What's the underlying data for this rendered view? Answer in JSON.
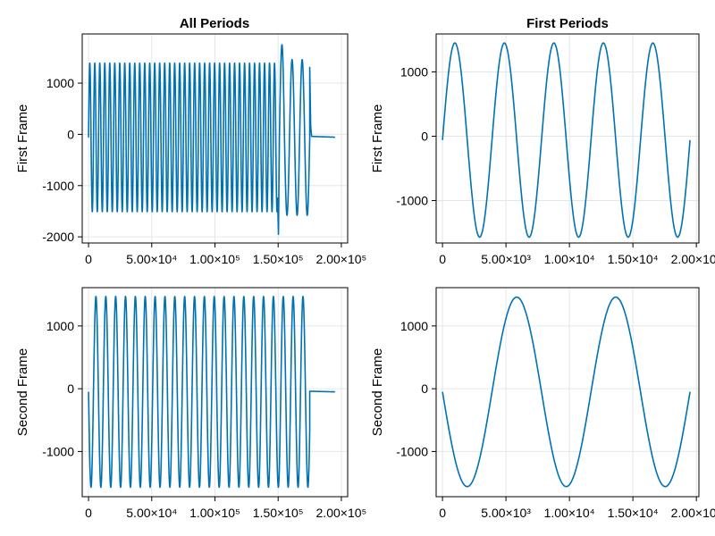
{
  "figure": {
    "background": "#ffffff",
    "line_color": "#0072b2"
  },
  "chart_data": [
    {
      "type": "line",
      "title": "All Periods",
      "xlabel": "",
      "ylabel": "First Frame",
      "xlim": [
        -5000,
        205000
      ],
      "ylim": [
        -2120,
        1960
      ],
      "x_ticks": [
        0,
        50000,
        100000,
        150000,
        200000
      ],
      "x_tick_labels": [
        "0",
        "5.00×10⁴",
        "1.00×10⁵",
        "1.50×10⁵",
        "2.00×10⁵"
      ],
      "y_ticks": [
        -2000,
        -1000,
        0,
        1000
      ],
      "y_tick_labels": [
        "-2000",
        "-1000",
        "0",
        "1000"
      ],
      "grid": true,
      "series": [
        {
          "name": "First Frame",
          "signal": {
            "segments": [
              {
                "x_start": 0,
                "x_end": 149500,
                "period": 3950,
                "amplitude": 1450,
                "offset": -60,
                "phase_deg": 0
              },
              {
                "x_start": 149500,
                "x_end": 151000,
                "spike_to": -1950
              },
              {
                "x_start": 151000,
                "x_end": 175000,
                "period": 8000,
                "amplitude": 1520,
                "offset": -60,
                "phase_deg": 0,
                "first_peak": 1750
              },
              {
                "x_start": 175000,
                "x_end": 176500,
                "spike_to": 160
              },
              {
                "x_start": 176500,
                "x_end": 195000,
                "flat_from": -40,
                "flat_to": -55
              }
            ]
          }
        }
      ]
    },
    {
      "type": "line",
      "title": "First Periods",
      "xlabel": "",
      "ylabel": "First Frame",
      "xlim": [
        -500,
        20200
      ],
      "ylim": [
        -1660,
        1590
      ],
      "x_ticks": [
        0,
        5000,
        10000,
        15000,
        20000
      ],
      "x_tick_labels": [
        "0",
        "5.00×10³",
        "1.00×10⁴",
        "1.50×10⁴",
        "2.00×10⁴"
      ],
      "y_ticks": [
        -1000,
        0,
        1000
      ],
      "y_tick_labels": [
        "-1000",
        "0",
        "1000"
      ],
      "grid": true,
      "series": [
        {
          "name": "First Frame",
          "signal": {
            "segments": [
              {
                "x_start": 0,
                "x_end": 19500,
                "period": 3900,
                "amplitude": 1510,
                "offset": -60,
                "phase_deg": 0
              }
            ]
          }
        }
      ]
    },
    {
      "type": "line",
      "title": "",
      "xlabel": "",
      "ylabel": "Second Frame",
      "xlim": [
        -5000,
        205000
      ],
      "ylim": [
        -1720,
        1610
      ],
      "x_ticks": [
        0,
        50000,
        100000,
        150000,
        200000
      ],
      "x_tick_labels": [
        "0",
        "5.00×10⁴",
        "1.00×10⁵",
        "1.50×10⁵",
        "2.00×10⁵"
      ],
      "y_ticks": [
        -1000,
        0,
        1000
      ],
      "y_tick_labels": [
        "-1000",
        "0",
        "1000"
      ],
      "grid": true,
      "series": [
        {
          "name": "Second Frame",
          "signal": {
            "segments": [
              {
                "x_start": 0,
                "x_end": 175000,
                "period": 7800,
                "amplitude": 1520,
                "offset": -50,
                "phase_deg": 180
              },
              {
                "x_start": 175000,
                "x_end": 195000,
                "flat_from": -40,
                "flat_to": -50
              }
            ]
          }
        }
      ]
    },
    {
      "type": "line",
      "title": "",
      "xlabel": "",
      "ylabel": "Second Frame",
      "xlim": [
        -500,
        20200
      ],
      "ylim": [
        -1720,
        1610
      ],
      "x_ticks": [
        0,
        5000,
        10000,
        15000,
        20000
      ],
      "x_tick_labels": [
        "0",
        "5.00×10³",
        "1.00×10⁴",
        "1.50×10⁴",
        "2.00×10⁴"
      ],
      "y_ticks": [
        -1000,
        0,
        1000
      ],
      "y_tick_labels": [
        "-1000",
        "0",
        "1000"
      ],
      "grid": true,
      "series": [
        {
          "name": "Second Frame",
          "signal": {
            "segments": [
              {
                "x_start": 0,
                "x_end": 19500,
                "period": 7800,
                "amplitude": 1510,
                "offset": -50,
                "phase_deg": 180
              }
            ]
          }
        }
      ]
    }
  ]
}
